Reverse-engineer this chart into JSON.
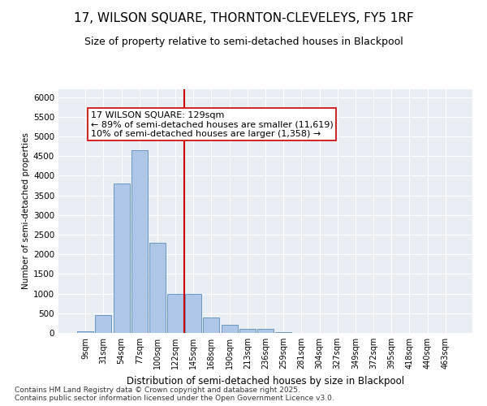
{
  "title1": "17, WILSON SQUARE, THORNTON-CLEVELEYS, FY5 1RF",
  "title2": "Size of property relative to semi-detached houses in Blackpool",
  "xlabel": "Distribution of semi-detached houses by size in Blackpool",
  "ylabel": "Number of semi-detached properties",
  "categories": [
    "9sqm",
    "31sqm",
    "54sqm",
    "77sqm",
    "100sqm",
    "122sqm",
    "145sqm",
    "168sqm",
    "190sqm",
    "213sqm",
    "236sqm",
    "259sqm",
    "281sqm",
    "304sqm",
    "327sqm",
    "349sqm",
    "372sqm",
    "395sqm",
    "418sqm",
    "440sqm",
    "463sqm"
  ],
  "values": [
    50,
    450,
    3800,
    4650,
    2300,
    1000,
    1000,
    400,
    200,
    100,
    100,
    20,
    5,
    2,
    1,
    1,
    1,
    0,
    0,
    0,
    0
  ],
  "bar_color": "#aec6e8",
  "bar_edge_color": "#5b8db8",
  "vline_color": "#cc0000",
  "annotation_text": "17 WILSON SQUARE: 129sqm\n← 89% of semi-detached houses are smaller (11,619)\n10% of semi-detached houses are larger (1,358) →",
  "box_color": "#cc0000",
  "ylim": [
    0,
    6200
  ],
  "yticks": [
    0,
    500,
    1000,
    1500,
    2000,
    2500,
    3000,
    3500,
    4000,
    4500,
    5000,
    5500,
    6000
  ],
  "footnote": "Contains HM Land Registry data © Crown copyright and database right 2025.\nContains public sector information licensed under the Open Government Licence v3.0.",
  "bg_color": "#e8eef4",
  "fig_bg_color": "#ffffff",
  "title1_fontsize": 11,
  "title2_fontsize": 9,
  "annotation_fontsize": 8,
  "footnote_fontsize": 6.5,
  "ylabel_fontsize": 7.5,
  "xlabel_fontsize": 8.5
}
